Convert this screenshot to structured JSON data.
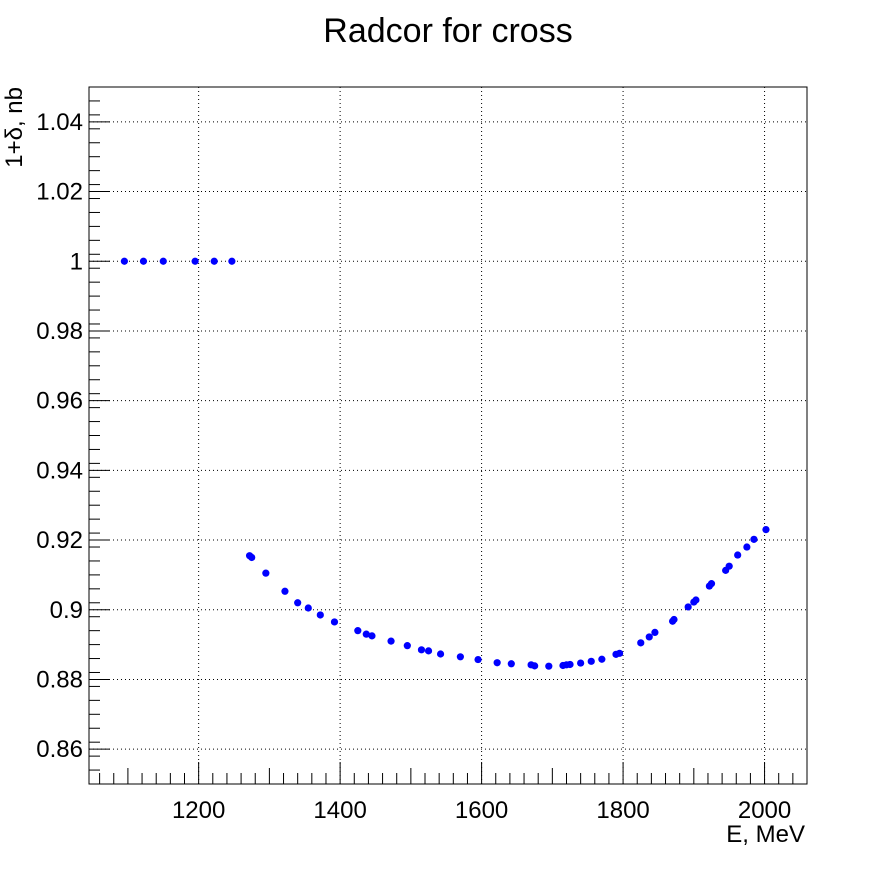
{
  "chart_data": {
    "type": "scatter",
    "title": "Radcor for cross",
    "xlabel": "E, MeV",
    "ylabel": "1+δ, nb",
    "xlim": [
      1045,
      2060
    ],
    "ylim": [
      0.85,
      1.05
    ],
    "grid": true,
    "xticks": [
      1200,
      1400,
      1600,
      1800,
      2000
    ],
    "yticks": [
      0.86,
      0.88,
      0.9,
      0.92,
      0.94,
      0.96,
      0.98,
      1,
      1.02,
      1.04
    ],
    "xtick_labels": [
      "1200",
      "1400",
      "1600",
      "1800",
      "2000"
    ],
    "ytick_labels": [
      "0.86",
      "0.88",
      "0.9",
      "0.92",
      "0.94",
      "0.96",
      "0.98",
      "1",
      "1.02",
      "1.04"
    ],
    "marker_color": "#0000ff",
    "series": [
      {
        "x": [
          1095,
          1122,
          1150,
          1195,
          1222,
          1247,
          1272,
          1275,
          1295,
          1322,
          1340,
          1355,
          1372,
          1392,
          1425,
          1437,
          1445,
          1472,
          1495,
          1515,
          1525,
          1542,
          1570,
          1595,
          1622,
          1642,
          1670,
          1675,
          1695,
          1715,
          1720,
          1725,
          1740,
          1755,
          1770,
          1790,
          1795,
          1825,
          1837,
          1845,
          1870,
          1872,
          1892,
          1900,
          1903,
          1922,
          1925,
          1945,
          1950,
          1962,
          1975,
          1985,
          2002
        ],
        "y": [
          1.0,
          1.0,
          1.0,
          1.0,
          1.0,
          1.0,
          0.9155,
          0.915,
          0.9105,
          0.9053,
          0.902,
          0.9005,
          0.8985,
          0.8965,
          0.894,
          0.893,
          0.8925,
          0.891,
          0.8897,
          0.8885,
          0.8882,
          0.8873,
          0.8865,
          0.8857,
          0.8848,
          0.8845,
          0.8842,
          0.8839,
          0.8838,
          0.884,
          0.8842,
          0.8843,
          0.8847,
          0.8852,
          0.8858,
          0.8872,
          0.8875,
          0.8905,
          0.8922,
          0.8935,
          0.8967,
          0.8972,
          0.9008,
          0.9022,
          0.9028,
          0.9068,
          0.9075,
          0.9113,
          0.9125,
          0.9157,
          0.918,
          0.9202,
          0.923
        ]
      }
    ]
  }
}
